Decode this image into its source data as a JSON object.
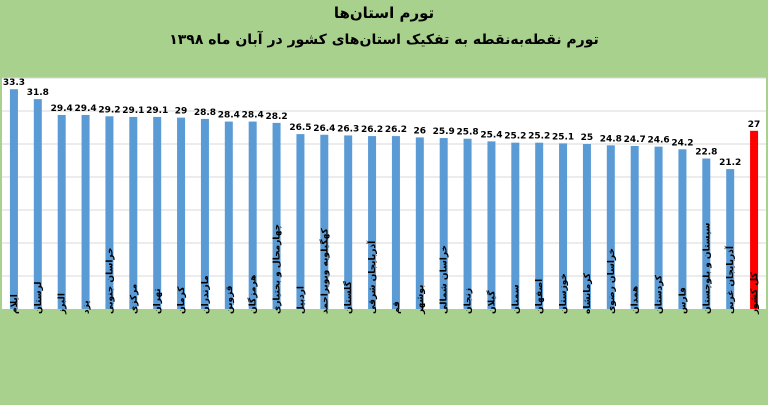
{
  "title": "تورم استان‌ها",
  "subtitle": "تورم نقطه‌به‌نقطه به تفکیک استان‌های کشور در آبان ماه ۱۳۹۸",
  "colors": {
    "bar": "#5b9bd5",
    "highlight": "#ff0000",
    "background": "#a9d18e",
    "plot_bg": "#ffffff",
    "grid": "#d9d9d9"
  },
  "chart_data": {
    "type": "bar",
    "title": "تورم استان‌ها",
    "subtitle": "تورم نقطه‌به‌نقطه به تفکیک استان‌های کشور در آبان ماه ۱۳۹۸",
    "xlabel": "",
    "ylabel": "",
    "ylim": [
      0,
      35
    ],
    "grid": true,
    "legend": "none",
    "categories": [
      "ایلام",
      "لرستان",
      "البرز",
      "یزد",
      "خراسان جنوبی",
      "مرکزی",
      "تهران",
      "کرمان",
      "مازندران",
      "قزوین",
      "هرمزگان",
      "چهارمحال و بختیاری",
      "اردبیل",
      "کهگیلویه وبویراحمد",
      "گلستان",
      "آذربایجان شرقی",
      "قم",
      "بوشهر",
      "خراسان شمالی",
      "زنجان",
      "گیلان",
      "سمنان",
      "اصفهان",
      "خوزستان",
      "کرمانشاه",
      "خراسان رضوی",
      "همدان",
      "کردستان",
      "فارس",
      "سیستان و بلوچستان",
      "آذربایجان غربی",
      "کل کشور"
    ],
    "values": [
      33.3,
      31.8,
      29.4,
      29.4,
      29.2,
      29.1,
      29.1,
      29,
      28.8,
      28.4,
      28.4,
      28.2,
      26.5,
      26.4,
      26.3,
      26.2,
      26.2,
      26,
      25.9,
      25.8,
      25.4,
      25.2,
      25.2,
      25.1,
      25,
      24.8,
      24.7,
      24.6,
      24.2,
      22.8,
      21.2,
      27
    ],
    "highlight_index": 31
  }
}
